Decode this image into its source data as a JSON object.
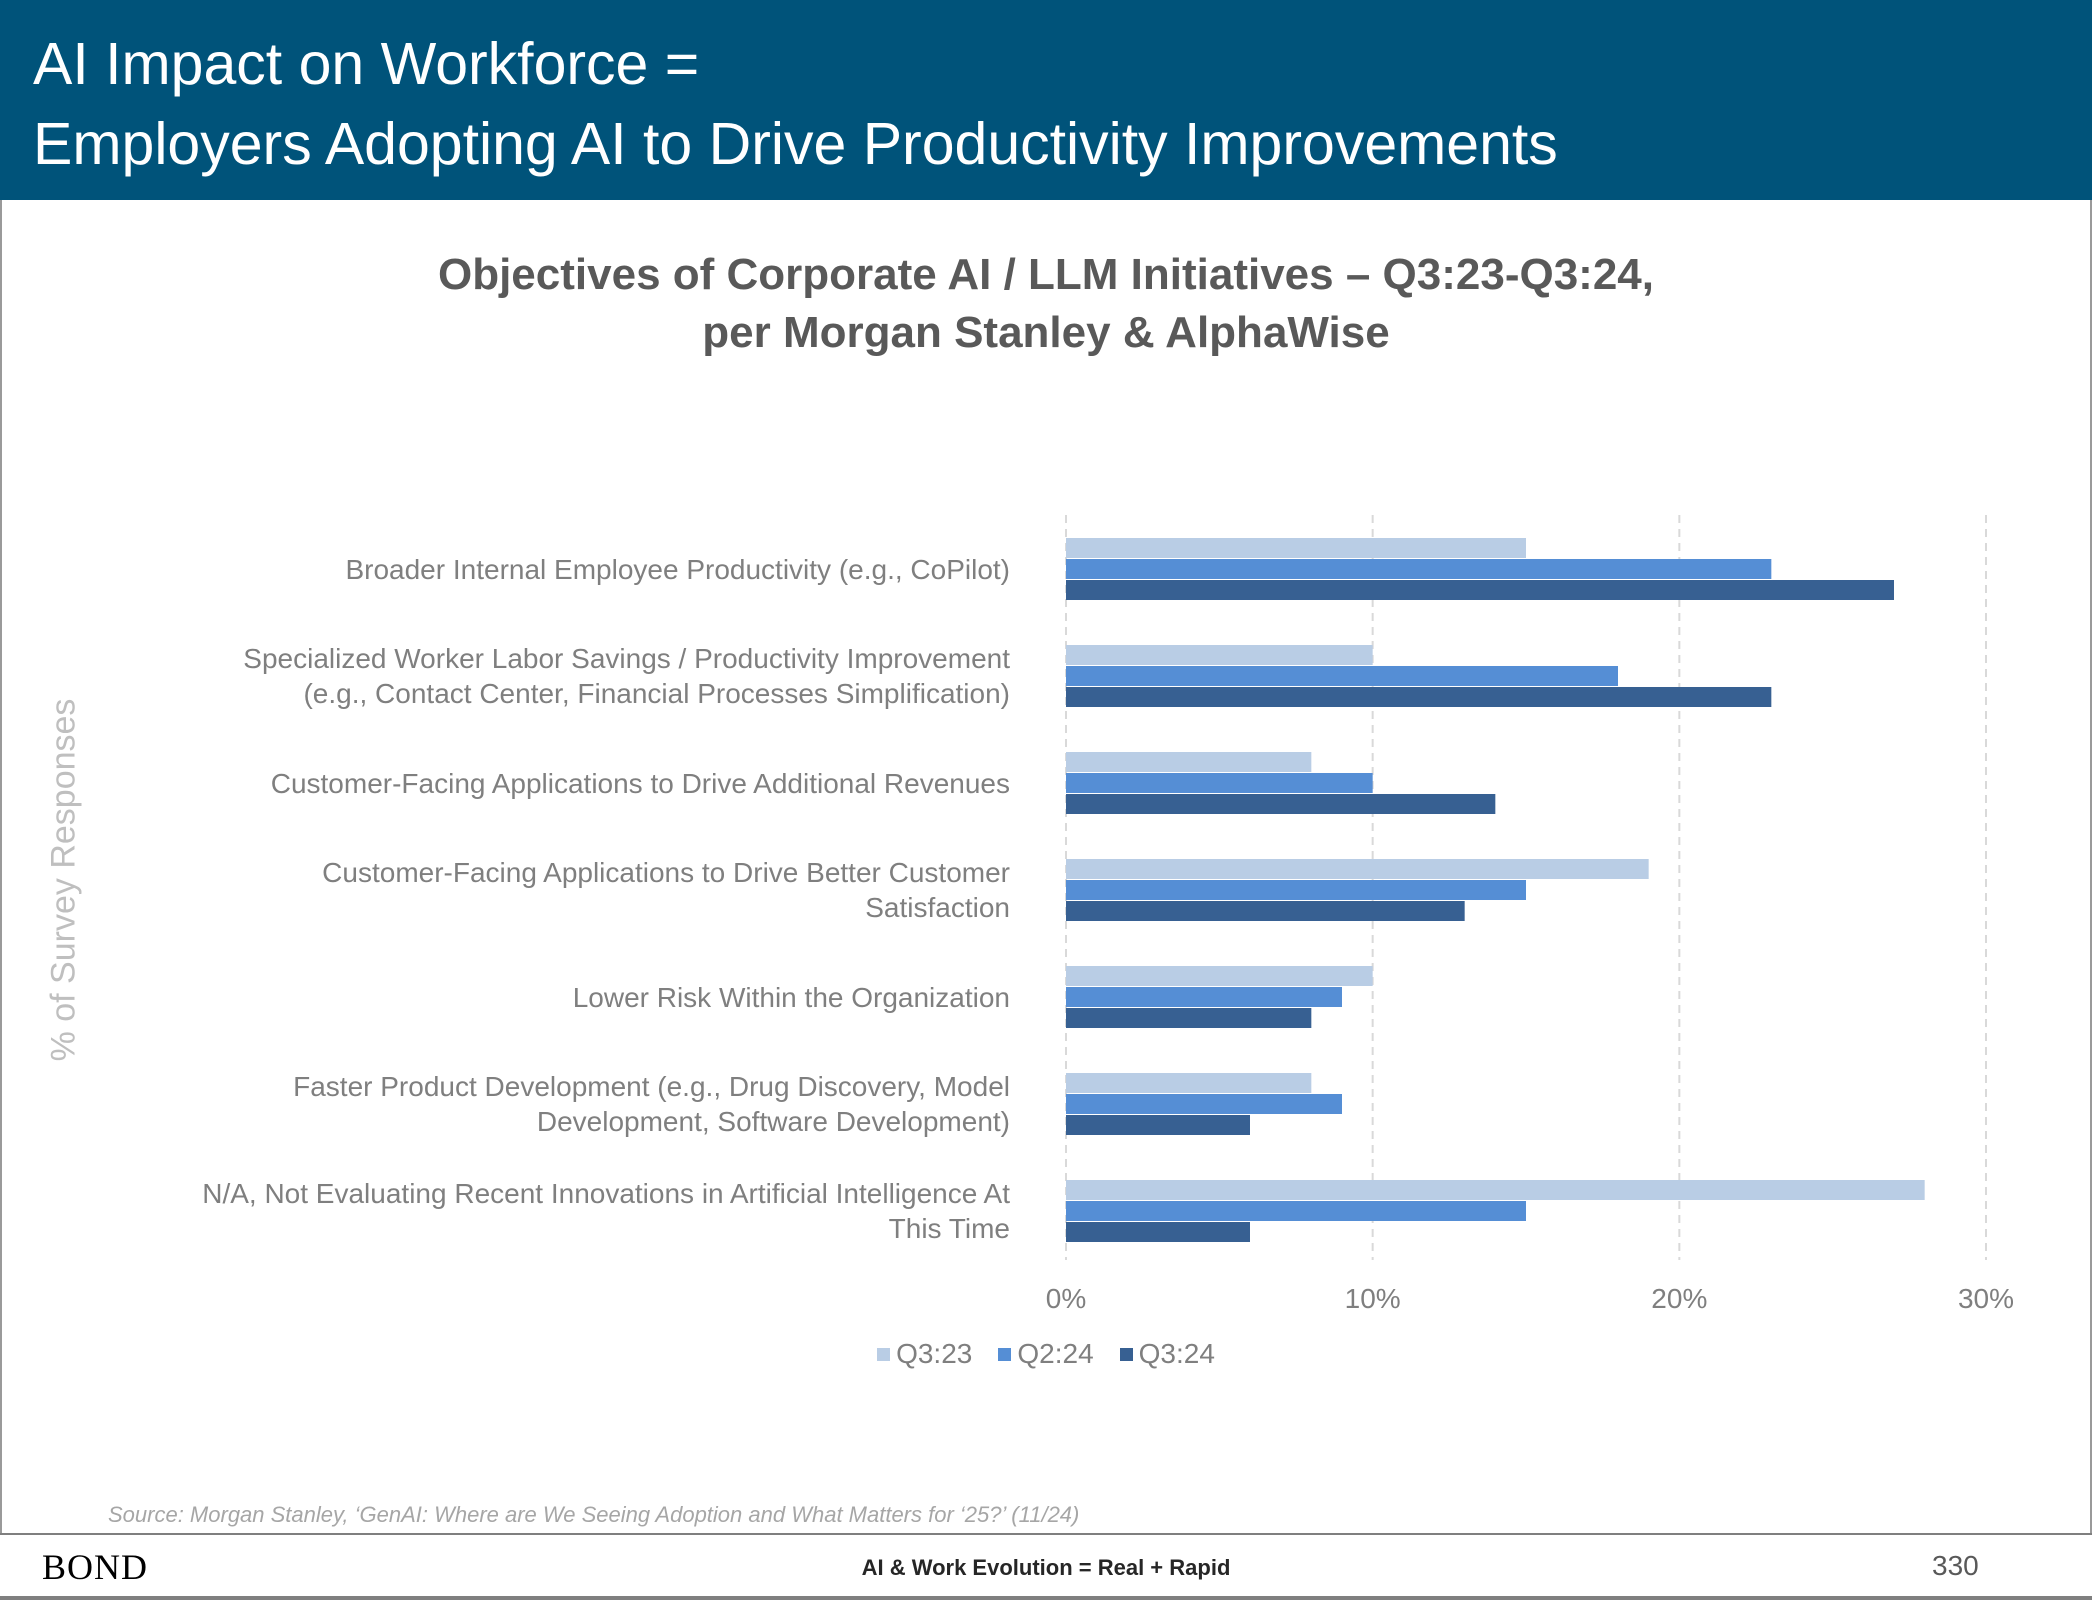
{
  "header": {
    "line1": "AI Impact on Workforce =",
    "line2": "Employers Adopting AI to Drive Productivity Improvements"
  },
  "chart_data": {
    "type": "bar",
    "orientation": "horizontal",
    "title": "Objectives of Corporate AI / LLM Initiatives – Q3:23-Q3:24,",
    "subtitle": "per Morgan Stanley & AlphaWise",
    "ylabel": "% of Survey Responses",
    "xlabel": "",
    "categories": [
      "Broader Internal Employee Productivity (e.g., CoPilot)",
      "Specialized Worker Labor Savings / Productivity Improvement\n(e.g., Contact Center, Financial Processes Simplification)",
      "Customer-Facing Applications to Drive Additional Revenues",
      "Customer-Facing Applications to Drive Better Customer\nSatisfaction",
      "Lower Risk Within the Organization",
      "Faster Product Development (e.g., Drug Discovery, Model\nDevelopment, Software Development)",
      "N/A, Not Evaluating Recent Innovations in Artificial Intelligence At\nThis Time"
    ],
    "series": [
      {
        "name": "Q3:23",
        "color": "#b9cde5",
        "values": [
          15,
          10,
          8,
          19,
          10,
          8,
          28
        ]
      },
      {
        "name": "Q2:24",
        "color": "#558ed5",
        "values": [
          23,
          18,
          10,
          15,
          9,
          9,
          15
        ]
      },
      {
        "name": "Q3:24",
        "color": "#376092",
        "values": [
          27,
          23,
          14,
          13,
          8,
          6,
          6
        ]
      }
    ],
    "xlim": [
      0,
      30
    ],
    "xticks": [
      0,
      10,
      20,
      30
    ],
    "tick_labels": [
      "0%",
      "10%",
      "20%",
      "30%"
    ],
    "grid": "vertical-dashed",
    "legend_position": "bottom"
  },
  "footer": {
    "source": "Source: Morgan Stanley, ‘GenAI: Where are We Seeing Adoption and What Matters for ‘25?’ (11/24)",
    "logo": "BOND",
    "center": "AI & Work Evolution = Real + Rapid",
    "page": "330"
  }
}
